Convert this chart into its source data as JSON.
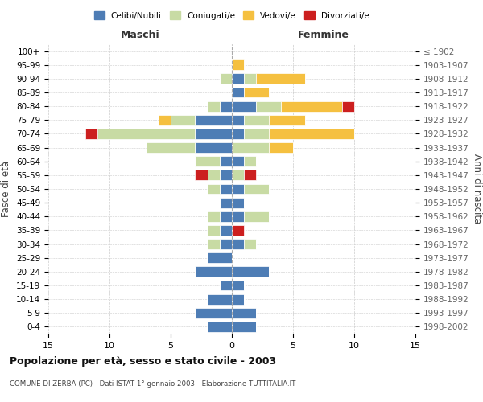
{
  "age_groups": [
    "0-4",
    "5-9",
    "10-14",
    "15-19",
    "20-24",
    "25-29",
    "30-34",
    "35-39",
    "40-44",
    "45-49",
    "50-54",
    "55-59",
    "60-64",
    "65-69",
    "70-74",
    "75-79",
    "80-84",
    "85-89",
    "90-94",
    "95-99",
    "100+"
  ],
  "birth_years": [
    "1998-2002",
    "1993-1997",
    "1988-1992",
    "1983-1987",
    "1978-1982",
    "1973-1977",
    "1968-1972",
    "1963-1967",
    "1958-1962",
    "1953-1957",
    "1948-1952",
    "1943-1947",
    "1938-1942",
    "1933-1937",
    "1928-1932",
    "1923-1927",
    "1918-1922",
    "1913-1917",
    "1908-1912",
    "1903-1907",
    "≤ 1902"
  ],
  "colors": {
    "celibi": "#4e7db5",
    "coniugati": "#c8dba4",
    "vedovi": "#f5c040",
    "divorziati": "#cc1f1f"
  },
  "maschi": {
    "celibi": [
      2,
      3,
      2,
      1,
      3,
      2,
      1,
      1,
      1,
      1,
      1,
      1,
      1,
      3,
      3,
      3,
      1,
      0,
      0,
      0,
      0
    ],
    "coniugati": [
      0,
      0,
      0,
      0,
      0,
      0,
      1,
      1,
      1,
      0,
      1,
      1,
      2,
      4,
      8,
      2,
      1,
      0,
      1,
      0,
      0
    ],
    "vedovi": [
      0,
      0,
      0,
      0,
      0,
      0,
      0,
      0,
      0,
      0,
      0,
      0,
      0,
      0,
      0,
      1,
      0,
      0,
      0,
      0,
      0
    ],
    "divorziati": [
      0,
      0,
      0,
      0,
      0,
      0,
      0,
      0,
      0,
      0,
      0,
      1,
      0,
      0,
      1,
      0,
      0,
      0,
      0,
      0,
      0
    ]
  },
  "femmine": {
    "celibi": [
      2,
      2,
      1,
      1,
      3,
      0,
      1,
      0,
      1,
      1,
      1,
      0,
      1,
      0,
      1,
      1,
      2,
      1,
      1,
      0,
      0
    ],
    "coniugati": [
      0,
      0,
      0,
      0,
      0,
      0,
      1,
      0,
      2,
      0,
      2,
      1,
      1,
      3,
      2,
      2,
      2,
      0,
      1,
      0,
      0
    ],
    "vedovi": [
      0,
      0,
      0,
      0,
      0,
      0,
      0,
      0,
      0,
      0,
      0,
      0,
      0,
      2,
      7,
      3,
      5,
      2,
      4,
      1,
      0
    ],
    "divorziati": [
      0,
      0,
      0,
      0,
      0,
      0,
      0,
      1,
      0,
      0,
      0,
      1,
      0,
      0,
      0,
      0,
      1,
      0,
      0,
      0,
      0
    ]
  },
  "xlim": 15,
  "title": "Popolazione per età, sesso e stato civile - 2003",
  "subtitle": "COMUNE DI ZERBA (PC) - Dati ISTAT 1° gennaio 2003 - Elaborazione TUTTITALIA.IT",
  "header_maschi": "Maschi",
  "header_femmine": "Femmine",
  "ylabel_left": "Fasce di età",
  "ylabel_right": "Anni di nascita",
  "legend_labels": [
    "Celibi/Nubili",
    "Coniugati/e",
    "Vedovi/e",
    "Divorziati/e"
  ],
  "bg_color": "#ffffff",
  "grid_color": "#cccccc"
}
